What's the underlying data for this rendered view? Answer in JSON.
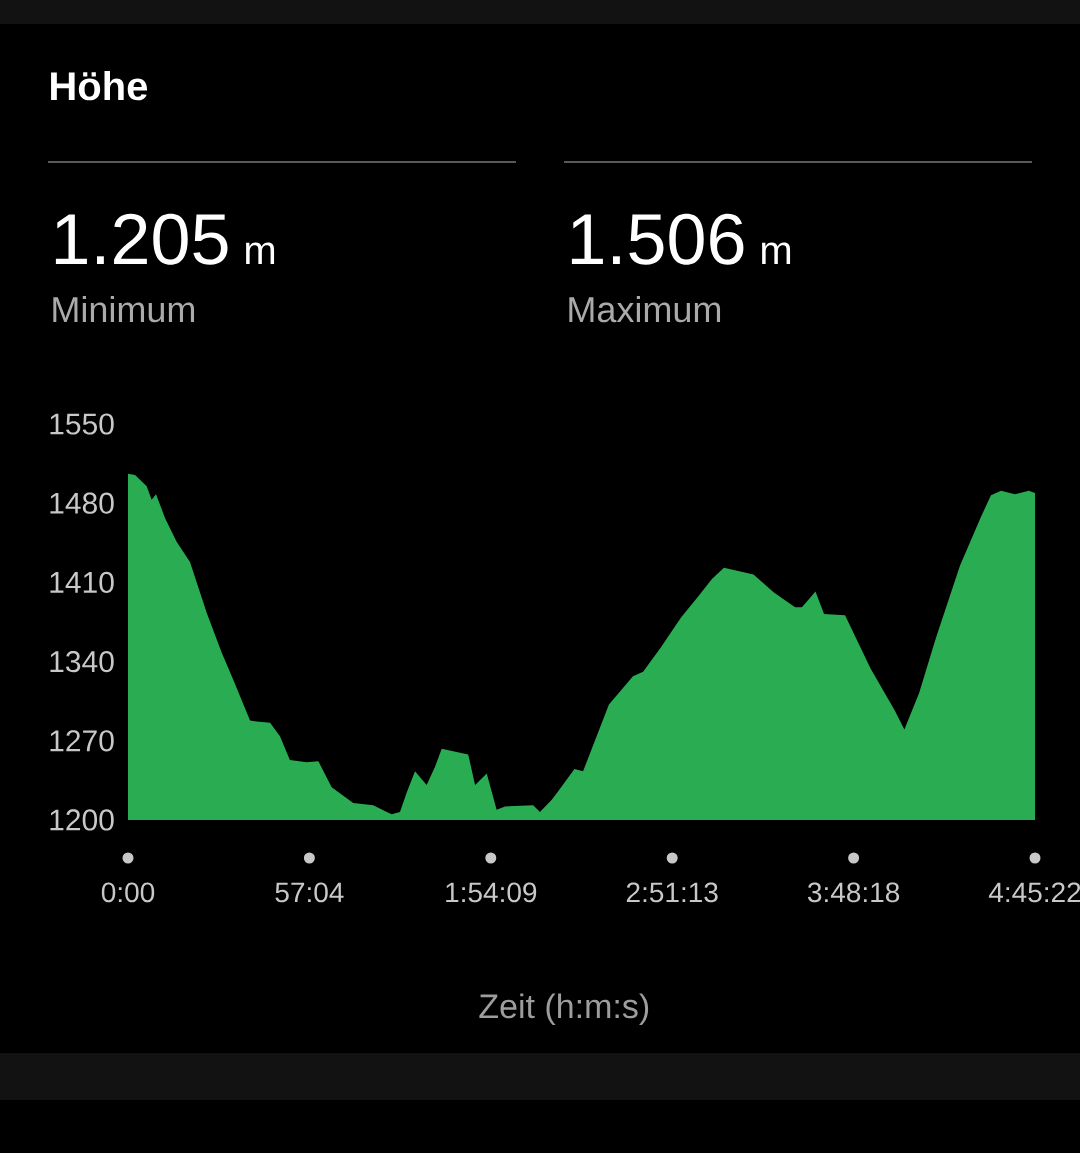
{
  "chart_data": {
    "type": "area",
    "title": "Höhe",
    "annotations": [
      "1.205",
      "m",
      "Minimum",
      "1.506",
      "m",
      "Maximum"
    ],
    "xlabel": "Zeit (h:m:s)",
    "x": [
      0,
      133,
      353,
      446,
      529,
      698,
      918,
      1170,
      1487,
      1768,
      1987,
      2304,
      2430,
      2682,
      2869,
      3056,
      3373,
      3593,
      3845,
      4252,
      4630,
      4885,
      4979,
      5134,
      5260,
      5418,
      5638,
      5796,
      5922,
      6422,
      6552,
      6772,
      6959,
      7117,
      7650,
      7776,
      7999,
      8100,
      8428,
      8590,
      9079,
      9533,
      9724,
      10051,
      10440,
      10771,
      11023,
      11250,
      11808,
      12193,
      12593,
      12722,
      12978,
      13140,
      13536,
      14018,
      14472,
      14656,
      14933,
      15253,
      15707,
      16103,
      16290,
      16481,
      16744,
      17006,
      17122
    ],
    "values": [
      1506,
      1505,
      1495,
      1483,
      1488,
      1467,
      1446,
      1428,
      1383,
      1348,
      1324,
      1288,
      1287,
      1286,
      1274,
      1253,
      1251,
      1252,
      1229,
      1215,
      1213,
      1207,
      1205,
      1207,
      1224,
      1243,
      1231,
      1247,
      1263,
      1258,
      1231,
      1241,
      1209,
      1212,
      1213,
      1207,
      1218,
      1224,
      1245,
      1243,
      1302,
      1327,
      1331,
      1352,
      1379,
      1398,
      1413,
      1423,
      1417,
      1401,
      1388,
      1388,
      1402,
      1382,
      1381,
      1334,
      1297,
      1280,
      1312,
      1361,
      1425,
      1468,
      1487,
      1491,
      1488,
      1491,
      1489
    ],
    "color": "#2aad52",
    "xlim": [
      0,
      17122
    ],
    "xticks": [
      {
        "value": 0,
        "label": "0:00"
      },
      {
        "value": 3424,
        "label": "57:04"
      },
      {
        "value": 6849,
        "label": "1:54:09"
      },
      {
        "value": 10273,
        "label": "2:51:13"
      },
      {
        "value": 13698,
        "label": "3:48:18"
      },
      {
        "value": 17122,
        "label": "4:45:22"
      }
    ],
    "ylim": [
      1200,
      1550
    ],
    "yticks": [
      1200,
      1270,
      1340,
      1410,
      1480,
      1550
    ]
  }
}
